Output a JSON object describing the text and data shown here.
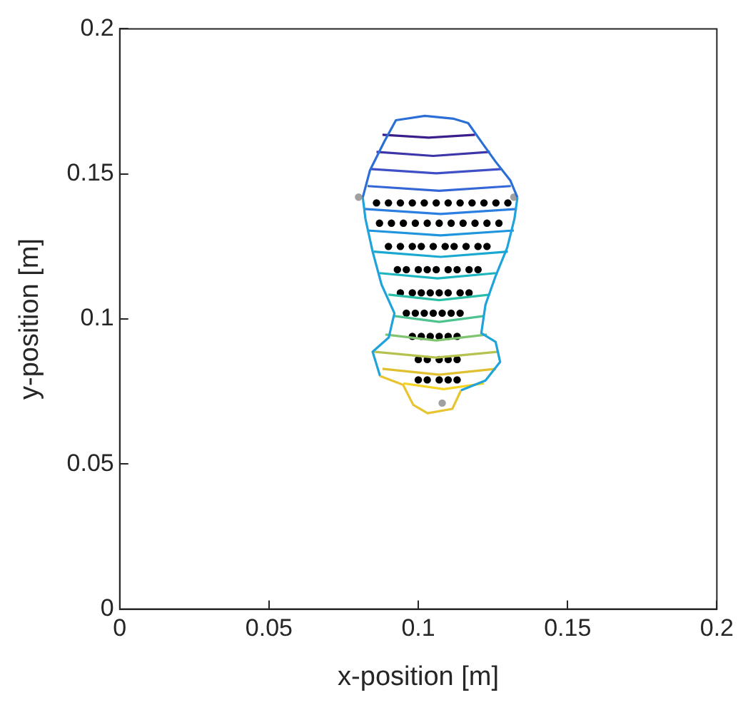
{
  "chart_data": {
    "type": "line",
    "xlabel": "x-position [m]",
    "ylabel": "y-position [m]",
    "xlim": [
      0,
      0.2
    ],
    "ylim": [
      0,
      0.2
    ],
    "xticks": [
      0,
      0.05,
      0.1,
      0.15,
      0.2
    ],
    "yticks": [
      0,
      0.05,
      0.1,
      0.15,
      0.2
    ],
    "grid": false,
    "legend": false,
    "marker": "none",
    "line_style": "solid",
    "series": [
      {
        "color": "#2b6fd6",
        "x": [
          0.0814,
          0.0838,
          0.0886,
          0.0925,
          0.1022,
          0.1119,
          0.1167,
          0.1211,
          0.1259,
          0.1308,
          0.1332
        ],
        "values": [
          0.1419,
          0.1512,
          0.1611,
          0.1685,
          0.17,
          0.169,
          0.1675,
          0.1611,
          0.1542,
          0.1478,
          0.1419
        ]
      },
      {
        "color": "#1fa3da",
        "x": [
          0.1332,
          0.1322,
          0.1298,
          0.1259,
          0.1225,
          0.1211,
          0.1259,
          0.1274,
          0.1225,
          0.1143
        ],
        "values": [
          0.1419,
          0.1345,
          0.1246,
          0.1148,
          0.1049,
          0.0951,
          0.0921,
          0.0852,
          0.0788,
          0.0754
        ]
      },
      {
        "color": "#e8c430",
        "x": [
          0.1143,
          0.1114,
          0.1031,
          0.0983,
          0.0949,
          0.0872
        ],
        "values": [
          0.0754,
          0.069,
          0.0675,
          0.0704,
          0.0773,
          0.0803
        ]
      },
      {
        "color": "#1fa3da",
        "x": [
          0.0872,
          0.0847,
          0.0901,
          0.092,
          0.0877,
          0.0847,
          0.0823,
          0.0814
        ],
        "values": [
          0.0803,
          0.0887,
          0.0936,
          0.102,
          0.1118,
          0.1232,
          0.1345,
          0.1419
        ]
      },
      {
        "type": "line",
        "color": "#3a1f8c",
        "x": [
          0.088,
          0.1035,
          0.119
        ],
        "values": [
          0.1635,
          0.1625,
          0.1635
        ]
      },
      {
        "type": "line",
        "color": "#3d35a8",
        "x": [
          0.086,
          0.105,
          0.124
        ],
        "values": [
          0.1576,
          0.1562,
          0.1576
        ]
      },
      {
        "type": "line",
        "color": "#3f4fc5",
        "x": [
          0.084,
          0.106,
          0.128
        ],
        "values": [
          0.1517,
          0.1502,
          0.1517
        ]
      },
      {
        "type": "line",
        "color": "#3366d6",
        "x": [
          0.083,
          0.107,
          0.131
        ],
        "values": [
          0.1458,
          0.1442,
          0.1458
        ]
      },
      {
        "type": "line",
        "color": "#2a7fe0",
        "x": [
          0.082,
          0.1075,
          0.133
        ],
        "values": [
          0.1379,
          0.1362,
          0.1379
        ]
      },
      {
        "type": "line",
        "color": "#1f95de",
        "x": [
          0.083,
          0.1075,
          0.132
        ],
        "values": [
          0.1305,
          0.1288,
          0.1305
        ]
      },
      {
        "type": "line",
        "color": "#19a8d0",
        "x": [
          0.085,
          0.1075,
          0.13
        ],
        "values": [
          0.1232,
          0.1214,
          0.1232
        ]
      },
      {
        "type": "line",
        "color": "#1cb5bf",
        "x": [
          0.087,
          0.1065,
          0.126
        ],
        "values": [
          0.1158,
          0.114,
          0.1158
        ]
      },
      {
        "type": "line",
        "color": "#2bbfa8",
        "x": [
          0.09,
          0.107,
          0.124
        ],
        "values": [
          0.1084,
          0.1065,
          0.1084
        ]
      },
      {
        "type": "line",
        "color": "#4ec38f",
        "x": [
          0.092,
          0.107,
          0.122
        ],
        "values": [
          0.101,
          0.099,
          0.101
        ]
      },
      {
        "type": "line",
        "color": "#80c470",
        "x": [
          0.089,
          0.106,
          0.123
        ],
        "values": [
          0.0946,
          0.0926,
          0.0946
        ]
      },
      {
        "type": "line",
        "color": "#b5c250",
        "x": [
          0.085,
          0.106,
          0.127
        ],
        "values": [
          0.0887,
          0.0867,
          0.0887
        ]
      },
      {
        "type": "line",
        "color": "#e0c030",
        "x": [
          0.088,
          0.107,
          0.126
        ],
        "values": [
          0.0828,
          0.0808,
          0.0828
        ]
      },
      {
        "type": "line",
        "color": "#f5d320",
        "x": [
          0.095,
          0.1085,
          0.122
        ],
        "values": [
          0.0778,
          0.0758,
          0.0778
        ]
      },
      {
        "type": "scatter",
        "color": "#000000",
        "marker": "circle",
        "x": [
          0.086,
          0.09,
          0.094,
          0.098,
          0.102,
          0.106,
          0.11,
          0.114,
          0.118,
          0.122,
          0.126,
          0.13,
          0.087,
          0.091,
          0.095,
          0.099,
          0.103,
          0.107,
          0.111,
          0.115,
          0.119,
          0.123,
          0.127,
          0.09,
          0.094,
          0.098,
          0.101,
          0.105,
          0.109,
          0.112,
          0.116,
          0.12,
          0.123,
          0.093,
          0.096,
          0.1,
          0.103,
          0.106,
          0.11,
          0.113,
          0.117,
          0.12,
          0.094,
          0.098,
          0.101,
          0.104,
          0.107,
          0.11,
          0.114,
          0.117,
          0.096,
          0.099,
          0.102,
          0.105,
          0.108,
          0.111,
          0.114,
          0.098,
          0.101,
          0.104,
          0.107,
          0.11,
          0.113,
          0.1,
          0.103,
          0.107,
          0.11,
          0.113,
          0.1,
          0.103,
          0.107,
          0.11,
          0.113
        ],
        "values": [
          0.14,
          0.14,
          0.14,
          0.14,
          0.14,
          0.14,
          0.14,
          0.14,
          0.14,
          0.14,
          0.14,
          0.14,
          0.133,
          0.133,
          0.133,
          0.133,
          0.133,
          0.133,
          0.133,
          0.133,
          0.133,
          0.133,
          0.133,
          0.125,
          0.125,
          0.125,
          0.125,
          0.125,
          0.125,
          0.125,
          0.125,
          0.125,
          0.125,
          0.117,
          0.117,
          0.117,
          0.117,
          0.117,
          0.117,
          0.117,
          0.117,
          0.117,
          0.109,
          0.109,
          0.109,
          0.109,
          0.109,
          0.109,
          0.109,
          0.109,
          0.102,
          0.102,
          0.102,
          0.102,
          0.102,
          0.102,
          0.102,
          0.094,
          0.094,
          0.094,
          0.094,
          0.094,
          0.094,
          0.086,
          0.086,
          0.086,
          0.086,
          0.086,
          0.079,
          0.079,
          0.079,
          0.079,
          0.079
        ]
      },
      {
        "type": "scatter",
        "color": "#a0a0a0",
        "marker": "circle",
        "x": [
          0.08,
          0.132,
          0.108
        ],
        "values": [
          0.142,
          0.142,
          0.071
        ]
      }
    ]
  }
}
